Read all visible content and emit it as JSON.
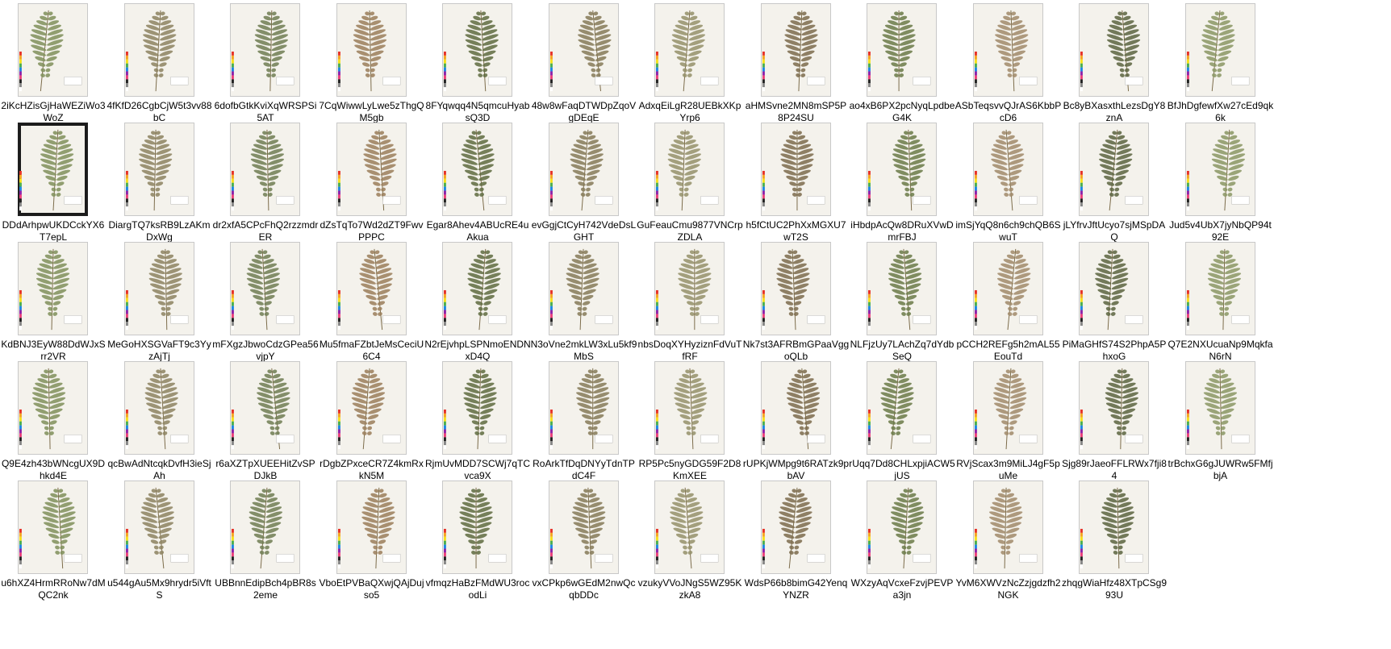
{
  "files": [
    "2iKcHZisGjHaWEZiWo3WoZ",
    "4fKfD26CgbCjW5t3vv88bC",
    "6dofbGtkKviXqWRSPSi5AT",
    "7CqWiwwLyLwe5zThgQM5gb",
    "8FYqwqq4N5qmcuHyabsQ3D",
    "48w8wFaqDTWDpZqoVgDEqE",
    "AdxqEiLgR28UEBkXKpYrp6",
    "aHMSvne2MN8mSP5P8P24SU",
    "ao4xB6PX2pcNyqLpdbeG4K",
    "ASbTeqsvvQJrAS6KbbPcD6",
    "Bc8yBXasxthLezsDgY8znA",
    "BfJhDgfewfXw27cEd9qk6k",
    "DDdArhpwUKDCckYX6T7epL",
    "DiargTQ7ksRB9LzAKmDxWg",
    "dr2xfA5CPcFhQ2rzzmdrER",
    "dZsTqTo7Wd2dZT9FwvPPPC",
    "Egar8Ahev4ABUcRE4uAkua",
    "evGgjCtCyH742VdeDsLGHT",
    "GuFeauCmu9877VNCrpZDLA",
    "h5fCtUC2PhXxMGXU7wT2S",
    "iHbdpAcQw8DRuXVwDmrFBJ",
    "imSjYqQ8n6ch9chQB6SwuT",
    "jLYfrvJftUcyo7sjMSpDAQ",
    "Jud5v4UbX7jyNbQP94t92E",
    "KdBNJ3EyW88DdWJxSrr2VR",
    "MeGoHXSGVaFT9c3YyzAjTj",
    "mFXgzJbwoCdzGPea56vjpY",
    "Mu5fmaFZbtJeMsCeciU6C4",
    "N2rEjvhpLSPNmoENDNxD4Q",
    "N3oVne2mkLW3xLu5kf9MbS",
    "nbsDoqXYHyziznFdVuTfRF",
    "Nk7st3AFRBmGPaaVggoQLb",
    "NLFjzUy7LAchZq7dYdbSeQ",
    "pCCH2REFg5h2mAL55EouTd",
    "PiMaGHfS74S2PhpA5PhxoG",
    "Q7E2NXUcuaNp9MqkfaN6rN",
    "Q9E4zh43bWNcgUX9Dhkd4E",
    "qcBwAdNtcqkDvfH3ieSjAh",
    "r6aXZTpXUEEHitZvSPDJkB",
    "rDgbZPxceCR7Z4kmRxkN5M",
    "RjmUvMDD7SCWj7qTCvca9X",
    "RoArkTfDqDNYyTdnTPdC4F",
    "RP5Pc5nyGDG59F2D8KmXEE",
    "rUPKjWMpg9t6RATzk9pbAV",
    "rUqq7Dd8CHLxpjiACW5jUS",
    "RVjScax3m9MiLJ4gF5puMe",
    "Sjg89rJaeoFFLRWx7fji84",
    "trBchxG6gJUWRw5FMfjbjA",
    "u6hXZ4HrmRRoNw7dMQC2nk",
    "u544gAu5Mx9hrydr5iVftS",
    "UBBnnEdipBch4pBR8s2eme",
    "VboEtPVBaQXwjQAjDujso5",
    "vfmqzHaBzFMdWU3rocodLi",
    "vxCPkp6wGEdM2nwQcqbDDc",
    "vzukyVVoJNgS5WZ95KzkA8",
    "WdsP66b8bimG42YenqYNZR",
    "WXzyAqVcxeFzvjPEVPa3jn",
    "YvM6XWVzNcZzjgdzfh2NGK",
    "zhqgWiaHfz48XTpCSg993U"
  ],
  "palette": [
    "#7f8f5a",
    "#8c8260",
    "#6f7d52",
    "#9a7e5a",
    "#5e6b3f",
    "#857a58",
    "#94906a",
    "#7b6b4c",
    "#6a7a48",
    "#a0896a",
    "#5a6440",
    "#8a9664"
  ],
  "dark_frame_index": 12,
  "colors": {
    "background": "#ffffff",
    "sheet": "#f4f2ec",
    "label_text": "#000000"
  }
}
